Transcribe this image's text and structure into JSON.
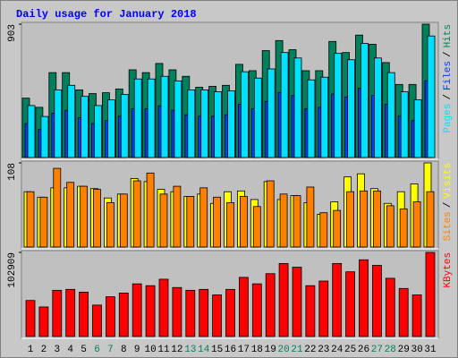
{
  "chart_data": {
    "type": "bar",
    "title": "Daily usage for January 2018",
    "categories": [
      "1",
      "2",
      "3",
      "4",
      "5",
      "6",
      "7",
      "8",
      "9",
      "10",
      "11",
      "12",
      "13",
      "14",
      "15",
      "16",
      "17",
      "18",
      "19",
      "20",
      "21",
      "22",
      "23",
      "24",
      "25",
      "26",
      "27",
      "28",
      "29",
      "30",
      "31"
    ],
    "highlight_categories": [
      "6",
      "7",
      "13",
      "14",
      "20",
      "21",
      "27",
      "28"
    ],
    "highlight_color": "#00805c",
    "label_color": "#000000",
    "title_color": "#0000ff",
    "panels": [
      {
        "ylim": [
          0,
          903
        ],
        "yticks": [
          903
        ],
        "legend_separator": "/",
        "series": [
          {
            "name": "Hits",
            "color": "#00805c",
            "values": [
              402,
              340,
              575,
              575,
              458,
              433,
              439,
              464,
              594,
              575,
              637,
              594,
              550,
              476,
              482,
              489,
              631,
              588,
              724,
              792,
              730,
              588,
              588,
              786,
              711,
              829,
              767,
              643,
              495,
              495,
              903
            ]
          },
          {
            "name": "Files",
            "color": "#0040ff",
            "values": [
              230,
              190,
              300,
              320,
              270,
              230,
              250,
              280,
              330,
              330,
              350,
              320,
              290,
              280,
              280,
              290,
              360,
              330,
              380,
              440,
              420,
              330,
              340,
              430,
              410,
              470,
              420,
              360,
              280,
              250,
              520
            ]
          },
          {
            "name": "Pages",
            "color": "#00e0ff",
            "values": [
              352,
              278,
              458,
              489,
              414,
              352,
              390,
              427,
              532,
              532,
              550,
              519,
              458,
              458,
              445,
              452,
              581,
              538,
              600,
              711,
              674,
              526,
              544,
              705,
              662,
              773,
              674,
              575,
              445,
              390,
              823
            ]
          }
        ]
      },
      {
        "ylim": [
          0,
          108
        ],
        "yticks": [
          108
        ],
        "legend_separator": "/",
        "series": [
          {
            "name": "Visits",
            "color": "#ffff00",
            "values": [
              71,
              64,
              76,
              76,
              78,
              75,
              63,
              68,
              88,
              84,
              74,
              71,
              65,
              68,
              56,
              71,
              72,
              61,
              84,
              61,
              66,
              57,
              42,
              58,
              90,
              94,
              75,
              56,
              71,
              81,
              108
            ]
          },
          {
            "name": "Sites",
            "color": "#ff8000",
            "values": [
              71,
              64,
              101,
              83,
              78,
              74,
              57,
              68,
              85,
              95,
              68,
              78,
              65,
              76,
              64,
              57,
              65,
              52,
              85,
              68,
              66,
              77,
              44,
              47,
              71,
              72,
              72,
              53,
              49,
              58,
              71
            ]
          }
        ]
      },
      {
        "ylim": [
          0,
          102909
        ],
        "yticks": [
          102909
        ],
        "series": [
          {
            "name": "KBytes",
            "color": "#ff0000",
            "values": [
              44100,
              36190,
              56540,
              57670,
              54280,
              38450,
              48630,
              53150,
              64460,
              62200,
              70110,
              59940,
              56540,
              57670,
              50890,
              57670,
              72370,
              64460,
              76900,
              89340,
              84810,
              62200,
              67850,
              89340,
              79160,
              93860,
              87080,
              71250,
              58810,
              50890,
              102909
            ]
          }
        ]
      }
    ]
  }
}
